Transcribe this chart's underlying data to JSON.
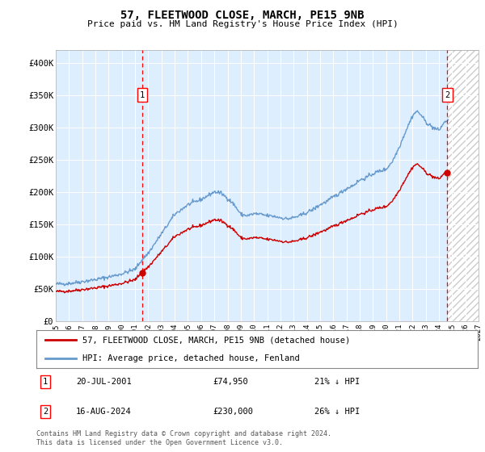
{
  "title": "57, FLEETWOOD CLOSE, MARCH, PE15 9NB",
  "subtitle": "Price paid vs. HM Land Registry's House Price Index (HPI)",
  "background_color": "#ffffff",
  "plot_bg_color": "#ddeeff",
  "grid_color": "#ffffff",
  "ylim": [
    0,
    420000
  ],
  "yticks": [
    0,
    50000,
    100000,
    150000,
    200000,
    250000,
    300000,
    350000,
    400000
  ],
  "ytick_labels": [
    "£0",
    "£50K",
    "£100K",
    "£150K",
    "£200K",
    "£250K",
    "£300K",
    "£350K",
    "£400K"
  ],
  "xmin_year": 1995,
  "xmax_year": 2027,
  "xticks": [
    1995,
    1996,
    1997,
    1998,
    1999,
    2000,
    2001,
    2002,
    2003,
    2004,
    2005,
    2006,
    2007,
    2008,
    2009,
    2010,
    2011,
    2012,
    2013,
    2014,
    2015,
    2016,
    2017,
    2018,
    2019,
    2020,
    2021,
    2022,
    2023,
    2024,
    2025,
    2026,
    2027
  ],
  "hpi_color": "#6699cc",
  "price_color": "#cc0000",
  "marker1_date": 2001.55,
  "marker1_price": 74950,
  "marker1_label": "1",
  "marker1_date_str": "20-JUL-2001",
  "marker1_price_str": "£74,950",
  "marker1_hpi_str": "21% ↓ HPI",
  "marker2_date": 2024.62,
  "marker2_price": 230000,
  "marker2_label": "2",
  "marker2_date_str": "16-AUG-2024",
  "marker2_price_str": "£230,000",
  "marker2_hpi_str": "26% ↓ HPI",
  "legend_line1": "57, FLEETWOOD CLOSE, MARCH, PE15 9NB (detached house)",
  "legend_line2": "HPI: Average price, detached house, Fenland",
  "footer": "Contains HM Land Registry data © Crown copyright and database right 2024.\nThis data is licensed under the Open Government Licence v3.0.",
  "hatch_start": 2024.62
}
